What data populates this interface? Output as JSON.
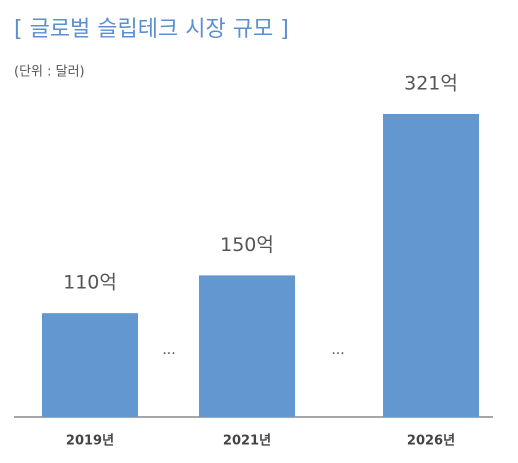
{
  "chart_data": {
    "type": "bar",
    "title": "[ 글로벌 슬립테크 시장 규모 ]",
    "subtitle": "(단위 : 달러)",
    "categories": [
      "2019년",
      "2021년",
      "2026년"
    ],
    "values": [
      110,
      150,
      321
    ],
    "value_labels": [
      "110억",
      "150억",
      "321억"
    ],
    "color": "#6297d0",
    "annotations": [
      "...",
      "..."
    ]
  }
}
